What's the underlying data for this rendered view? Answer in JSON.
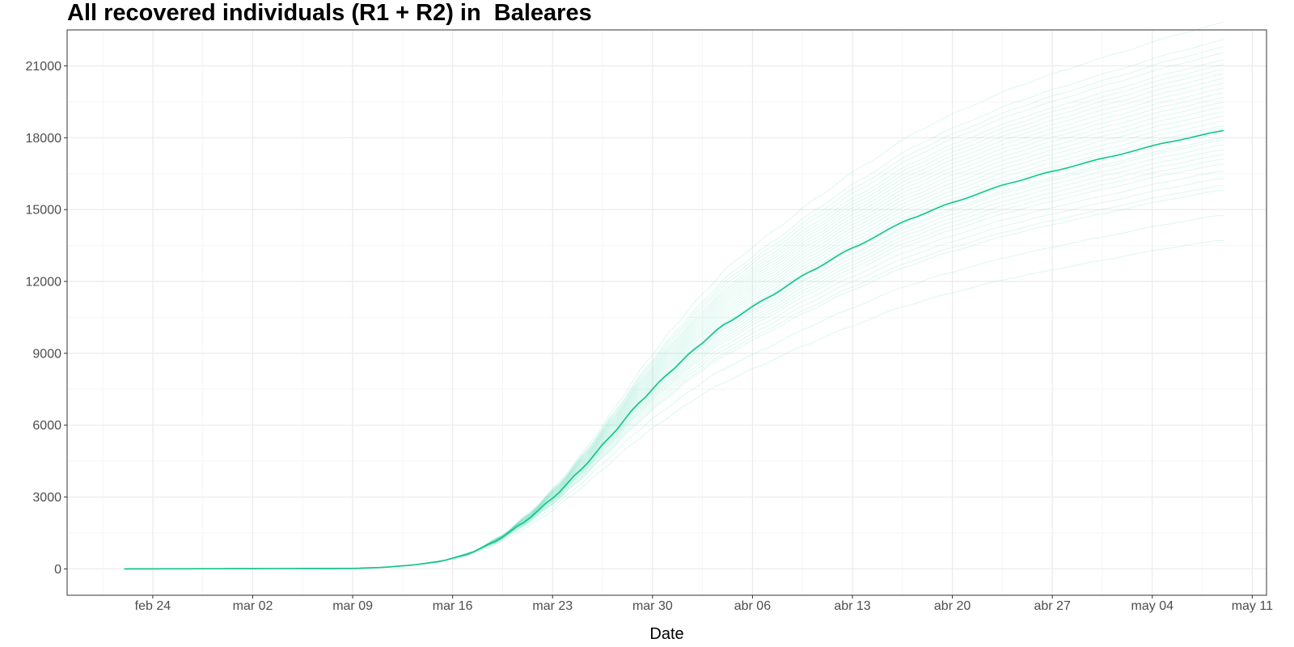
{
  "chart_data": {
    "type": "line",
    "title": "All recovered individuals (R1 + R2) in  Baleares",
    "xlabel": "Date",
    "ylabel": "",
    "x_start": "2020-02-22",
    "x_end": "2020-05-09",
    "xlim": [
      "2020-02-18",
      "2020-05-12"
    ],
    "ylim": [
      -1100,
      22500
    ],
    "x_ticks": [
      {
        "date": "2020-02-24",
        "label": "feb 24"
      },
      {
        "date": "2020-03-02",
        "label": "mar 02"
      },
      {
        "date": "2020-03-09",
        "label": "mar 09"
      },
      {
        "date": "2020-03-16",
        "label": "mar 16"
      },
      {
        "date": "2020-03-23",
        "label": "mar 23"
      },
      {
        "date": "2020-03-30",
        "label": "mar 30"
      },
      {
        "date": "2020-04-06",
        "label": "abr 06"
      },
      {
        "date": "2020-04-13",
        "label": "abr 13"
      },
      {
        "date": "2020-04-20",
        "label": "abr 20"
      },
      {
        "date": "2020-04-27",
        "label": "abr 27"
      },
      {
        "date": "2020-05-04",
        "label": "may 04"
      },
      {
        "date": "2020-05-11",
        "label": "may 11"
      }
    ],
    "y_ticks": [
      0,
      3000,
      6000,
      9000,
      12000,
      15000,
      18000,
      21000
    ],
    "grid": true,
    "legend": "none",
    "main_series": {
      "x": [
        "2020-02-22",
        "2020-03-09",
        "2020-03-11",
        "2020-03-13",
        "2020-03-15",
        "2020-03-17",
        "2020-03-19",
        "2020-03-21",
        "2020-03-23",
        "2020-03-25",
        "2020-03-27",
        "2020-03-29",
        "2020-03-31",
        "2020-04-02",
        "2020-04-04",
        "2020-04-07",
        "2020-04-10",
        "2020-04-13",
        "2020-04-17",
        "2020-04-20",
        "2020-04-24",
        "2020-04-27",
        "2020-05-01",
        "2020-05-05",
        "2020-05-09"
      ],
      "y": [
        0,
        20,
        60,
        150,
        300,
        600,
        1150,
        1950,
        2950,
        4150,
        5500,
        6900,
        8100,
        9200,
        10200,
        11300,
        12400,
        13400,
        14600,
        15300,
        16100,
        16600,
        17200,
        17800,
        18300
      ]
    },
    "ensemble_end_values": [
      13700,
      14750,
      15800,
      16000,
      16300,
      16600,
      16900,
      17100,
      17300,
      17500,
      17700,
      17900,
      18000,
      18200,
      18400,
      18500,
      18700,
      18900,
      19100,
      19300,
      19500,
      19700,
      19900,
      20100,
      20300,
      20500,
      20700,
      20900,
      21100,
      21300,
      21600,
      21850,
      22150,
      22900
    ],
    "colors": {
      "line": "#10c28c",
      "ensemble": "#5fd9b4",
      "grid_major": "#ebebeb",
      "grid_minor": "#f5f5f5",
      "panel_border": "#333333",
      "axis_text": "#4d4d4d"
    }
  }
}
